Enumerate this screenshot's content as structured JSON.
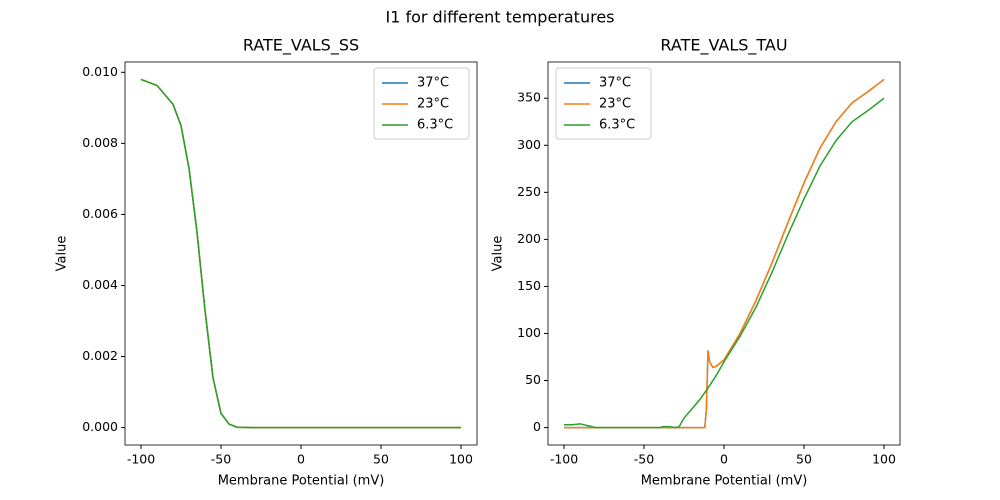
{
  "title": "I1 for different temperatures",
  "chart_data": [
    {
      "type": "line",
      "title": "RATE_VALS_SS",
      "xlabel": "Membrane Potential (mV)",
      "ylabel": "Value",
      "xlim": [
        -110,
        110
      ],
      "xticks": [
        -100,
        -50,
        0,
        50,
        100
      ],
      "ylim": [
        -0.00049,
        0.01029
      ],
      "yticks": [
        {
          "value": 0,
          "label": "0.000"
        },
        {
          "value": 0.002,
          "label": "0.002"
        },
        {
          "value": 0.004,
          "label": "0.004"
        },
        {
          "value": 0.006,
          "label": "0.006"
        },
        {
          "value": 0.008,
          "label": "0.008"
        },
        {
          "value": 0.01,
          "label": "0.010"
        }
      ],
      "legend": "upper right",
      "series": [
        {
          "name": "37°C",
          "color": "#1f77b4",
          "x": [
            -100,
            -90,
            -80,
            -75,
            -70,
            -65,
            -60,
            -55,
            -50,
            -45,
            -40,
            -30,
            0,
            50,
            100
          ],
          "values": [
            0.0098,
            0.00963,
            0.0091,
            0.0085,
            0.0073,
            0.0055,
            0.0033,
            0.0014,
            0.0004,
            0.0001,
            1e-05,
            0,
            0,
            0,
            0
          ]
        },
        {
          "name": "23°C",
          "color": "#ff7f0e",
          "x": [
            -100,
            -90,
            -80,
            -75,
            -70,
            -65,
            -60,
            -55,
            -50,
            -45,
            -40,
            -30,
            0,
            50,
            100
          ],
          "values": [
            0.0098,
            0.00963,
            0.0091,
            0.0085,
            0.0073,
            0.0055,
            0.0033,
            0.0014,
            0.0004,
            0.0001,
            1e-05,
            0,
            0,
            0,
            0
          ]
        },
        {
          "name": "6.3°C",
          "color": "#2ca02c",
          "x": [
            -100,
            -90,
            -80,
            -75,
            -70,
            -65,
            -60,
            -55,
            -50,
            -45,
            -40,
            -30,
            0,
            50,
            100
          ],
          "values": [
            0.0098,
            0.00963,
            0.0091,
            0.0085,
            0.0073,
            0.0055,
            0.0033,
            0.0014,
            0.0004,
            0.0001,
            1e-05,
            0,
            0,
            0,
            0
          ]
        }
      ]
    },
    {
      "type": "line",
      "title": "RATE_VALS_TAU",
      "xlabel": "Membrane Potential (mV)",
      "ylabel": "Value",
      "xlim": [
        -110,
        110
      ],
      "xticks": [
        -100,
        -50,
        0,
        50,
        100
      ],
      "ylim": [
        -18.5,
        388.5
      ],
      "yticks": [
        0,
        50,
        100,
        150,
        200,
        250,
        300,
        350
      ],
      "legend": "upper left",
      "series": [
        {
          "name": "37°C",
          "color": "#1f77b4",
          "x": [
            -100,
            -90,
            -80,
            -60,
            -40,
            -20,
            -12,
            -11,
            -10,
            -9,
            -7,
            -5,
            0,
            10,
            20,
            30,
            40,
            50,
            60,
            70,
            80,
            90,
            100
          ],
          "values": [
            0,
            0,
            0,
            0,
            0,
            0,
            0,
            20,
            82,
            70,
            64,
            65,
            72,
            100,
            135,
            175,
            218,
            260,
            297,
            325,
            345,
            357,
            370
          ]
        },
        {
          "name": "23°C",
          "color": "#ff7f0e",
          "x": [
            -100,
            -90,
            -80,
            -60,
            -40,
            -20,
            -12,
            -11,
            -10,
            -9,
            -7,
            -5,
            0,
            10,
            20,
            30,
            40,
            50,
            60,
            70,
            80,
            90,
            100
          ],
          "values": [
            0,
            0,
            0,
            0,
            0,
            0,
            0,
            20,
            82,
            70,
            64,
            65,
            72,
            100,
            135,
            175,
            218,
            260,
            297,
            325,
            345,
            357,
            370
          ]
        },
        {
          "name": "6.3°C",
          "color": "#2ca02c",
          "x": [
            -100,
            -95,
            -90,
            -85,
            -80,
            -60,
            -40,
            -38,
            -35,
            -30,
            -28,
            -25,
            -20,
            -15,
            -10,
            -5,
            0,
            10,
            20,
            30,
            40,
            50,
            60,
            70,
            80,
            90,
            100
          ],
          "values": [
            3,
            3,
            4,
            2,
            0,
            0,
            0,
            1,
            1,
            0,
            1,
            10,
            20,
            30,
            42,
            55,
            70,
            97,
            128,
            165,
            205,
            243,
            278,
            305,
            325,
            337,
            350
          ]
        }
      ]
    }
  ]
}
